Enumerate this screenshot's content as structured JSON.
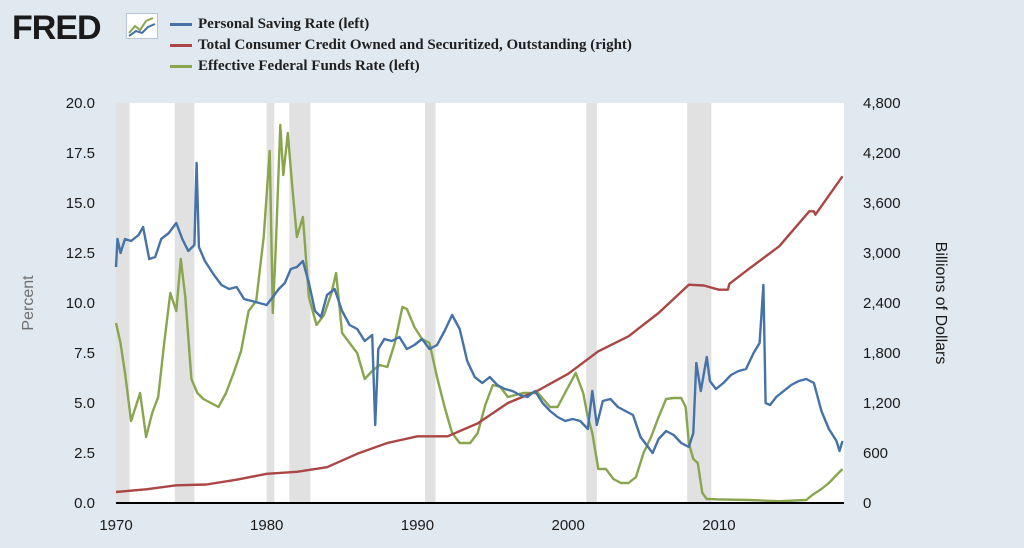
{
  "header": {
    "logo_text": "FRED",
    "logo_icon": "fred-line-graph-icon"
  },
  "legend": [
    {
      "label": "Personal Saving Rate (left)",
      "color": "#4572a7"
    },
    {
      "label": "Total Consumer Credit Owned and Securitized, Outstanding (right)",
      "color": "#aa4643"
    },
    {
      "label": "Effective Federal Funds Rate (left)",
      "color": "#89a54e"
    }
  ],
  "chart_data": {
    "type": "line",
    "ylabel": "Percent",
    "y2label": "Billions of Dollars",
    "xlim": [
      1970,
      2018.3
    ],
    "ylim": [
      0,
      20
    ],
    "y2lim": [
      0,
      4800
    ],
    "x_ticks": [
      "1970",
      "1980",
      "1990",
      "2000",
      "2010"
    ],
    "y_ticks": [
      "0.0",
      "2.5",
      "5.0",
      "7.5",
      "10.0",
      "12.5",
      "15.0",
      "17.5",
      "20.0"
    ],
    "y2_ticks": [
      "0",
      "600",
      "1,200",
      "1,800",
      "2,400",
      "3,000",
      "3,600",
      "4,200",
      "4,800"
    ],
    "grid": false,
    "legend_position": "top",
    "recessions": [
      [
        1969.9,
        1970.9
      ],
      [
        1973.9,
        1975.2
      ],
      [
        1980.0,
        1980.5
      ],
      [
        1981.5,
        1982.9
      ],
      [
        1990.5,
        1991.2
      ],
      [
        2001.2,
        2001.9
      ],
      [
        2007.9,
        2009.5
      ]
    ],
    "series": [
      {
        "name": "Personal Saving Rate (left)",
        "axis": "left",
        "color": "#4572a7",
        "x": [
          1970.0,
          1970.1,
          1970.3,
          1970.6,
          1971.0,
          1971.5,
          1971.8,
          1972.2,
          1972.6,
          1973.0,
          1973.5,
          1974.0,
          1974.4,
          1974.8,
          1975.2,
          1975.35,
          1975.5,
          1975.9,
          1976.5,
          1977.0,
          1977.5,
          1978.0,
          1978.5,
          1979.0,
          1979.5,
          1980.0,
          1980.4,
          1980.8,
          1981.2,
          1981.6,
          1982.0,
          1982.4,
          1982.8,
          1983.2,
          1983.6,
          1984.0,
          1984.5,
          1985.0,
          1985.5,
          1986.0,
          1986.5,
          1987.0,
          1987.2,
          1987.4,
          1987.8,
          1988.3,
          1988.8,
          1989.3,
          1989.8,
          1990.3,
          1990.8,
          1991.3,
          1991.8,
          1992.3,
          1992.8,
          1993.3,
          1993.8,
          1994.3,
          1994.8,
          1995.3,
          1995.8,
          1996.3,
          1996.8,
          1997.3,
          1997.8,
          1998.3,
          1998.8,
          1999.3,
          1999.8,
          2000.3,
          2000.8,
          2001.3,
          2001.6,
          2001.9,
          2002.3,
          2002.8,
          2003.3,
          2003.8,
          2004.3,
          2004.8,
          2005.3,
          2005.6,
          2006.0,
          2006.5,
          2007.0,
          2007.5,
          2008.0,
          2008.3,
          2008.5,
          2008.8,
          2009.2,
          2009.4,
          2009.8,
          2010.3,
          2010.8,
          2011.3,
          2011.8,
          2012.3,
          2012.7,
          2012.95,
          2013.1,
          2013.4,
          2013.8,
          2014.3,
          2014.8,
          2015.3,
          2015.8,
          2016.3,
          2016.8,
          2017.3,
          2017.8,
          2018.0,
          2018.2
        ],
        "y": [
          11.8,
          13.2,
          12.5,
          13.2,
          13.1,
          13.4,
          13.8,
          12.2,
          12.3,
          13.2,
          13.5,
          14.0,
          13.2,
          12.6,
          12.9,
          17.0,
          12.8,
          12.1,
          11.4,
          10.9,
          10.7,
          10.8,
          10.2,
          10.1,
          10.0,
          9.9,
          10.3,
          10.7,
          11.0,
          11.7,
          11.8,
          12.1,
          11.0,
          9.6,
          9.3,
          10.4,
          10.7,
          9.6,
          8.9,
          8.7,
          8.1,
          8.4,
          3.9,
          7.7,
          8.2,
          8.1,
          8.3,
          7.7,
          7.9,
          8.2,
          7.7,
          7.9,
          8.6,
          9.4,
          8.7,
          7.1,
          6.3,
          6.0,
          6.3,
          5.9,
          5.7,
          5.6,
          5.4,
          5.3,
          5.6,
          5.0,
          4.6,
          4.3,
          4.1,
          4.2,
          4.1,
          3.7,
          5.6,
          3.9,
          5.1,
          5.2,
          4.8,
          4.6,
          4.4,
          3.3,
          2.8,
          2.5,
          3.2,
          3.6,
          3.4,
          3.0,
          2.8,
          3.5,
          7.0,
          5.6,
          7.3,
          6.1,
          5.7,
          6.0,
          6.4,
          6.6,
          6.7,
          7.5,
          8.0,
          10.9,
          5.0,
          4.9,
          5.3,
          5.6,
          5.9,
          6.1,
          6.2,
          6.0,
          4.6,
          3.7,
          3.1,
          2.6,
          3.1
        ]
      },
      {
        "name": "Total Consumer Credit Owned and Securitized, Outstanding (right)",
        "axis": "right",
        "color": "#aa4643",
        "x": [
          1970,
          1972,
          1974,
          1976,
          1978,
          1980,
          1982,
          1984,
          1986,
          1988,
          1990,
          1992,
          1994,
          1996,
          1998,
          2000,
          2002,
          2004,
          2006,
          2008,
          2009,
          2010,
          2010.6,
          2010.7,
          2012,
          2014,
          2016,
          2016.3,
          2016.4,
          2018.2
        ],
        "y": [
          132,
          165,
          212,
          222,
          280,
          350,
          375,
          430,
          590,
          720,
          800,
          800,
          955,
          1200,
          1350,
          1550,
          1820,
          2000,
          2280,
          2620,
          2610,
          2560,
          2560,
          2630,
          2810,
          3080,
          3500,
          3500,
          3460,
          3920
        ]
      },
      {
        "name": "Effective Federal Funds Rate (left)",
        "axis": "left",
        "color": "#89a54e",
        "x": [
          1970.0,
          1970.3,
          1970.6,
          1971.0,
          1971.3,
          1971.6,
          1972.0,
          1972.4,
          1972.8,
          1973.2,
          1973.6,
          1974.0,
          1974.3,
          1974.6,
          1975.0,
          1975.4,
          1975.8,
          1976.3,
          1976.8,
          1977.3,
          1977.8,
          1978.3,
          1978.8,
          1979.3,
          1979.8,
          1980.2,
          1980.4,
          1980.6,
          1980.9,
          1981.1,
          1981.4,
          1981.7,
          1982.0,
          1982.4,
          1982.8,
          1983.3,
          1983.8,
          1984.3,
          1984.6,
          1985.0,
          1985.5,
          1986.0,
          1986.5,
          1987.0,
          1987.5,
          1988.0,
          1988.5,
          1989.0,
          1989.3,
          1989.8,
          1990.3,
          1990.8,
          1991.3,
          1991.8,
          1992.3,
          1992.8,
          1993.5,
          1994.0,
          1994.5,
          1995.0,
          1995.5,
          1996.0,
          1997.0,
          1998.0,
          1998.8,
          1999.3,
          2000.0,
          2000.5,
          2001.0,
          2001.3,
          2001.6,
          2002.0,
          2002.5,
          2003.0,
          2003.5,
          2004.0,
          2004.5,
          2005.0,
          2005.5,
          2006.0,
          2006.5,
          2007.0,
          2007.5,
          2007.8,
          2008.0,
          2008.3,
          2008.6,
          2008.9,
          2009.2,
          2010.0,
          2012.0,
          2014.0,
          2015.8,
          2016.2,
          2016.8,
          2017.3,
          2017.8,
          2018.2
        ],
        "y": [
          9.0,
          8.0,
          6.5,
          4.1,
          4.8,
          5.5,
          3.3,
          4.5,
          5.3,
          8.0,
          10.5,
          9.6,
          12.2,
          10.3,
          6.2,
          5.5,
          5.2,
          5.0,
          4.8,
          5.5,
          6.5,
          7.6,
          9.6,
          10.1,
          13.3,
          17.6,
          9.5,
          12.8,
          18.9,
          16.4,
          18.5,
          15.8,
          13.3,
          14.3,
          10.3,
          8.9,
          9.4,
          10.5,
          11.5,
          8.5,
          8.0,
          7.5,
          6.2,
          6.6,
          6.9,
          6.8,
          8.0,
          9.8,
          9.7,
          8.8,
          8.2,
          8.0,
          6.3,
          4.8,
          3.5,
          3.0,
          3.0,
          3.5,
          4.9,
          5.9,
          5.8,
          5.3,
          5.5,
          5.5,
          4.8,
          4.8,
          5.8,
          6.5,
          5.5,
          4.3,
          3.5,
          1.7,
          1.7,
          1.2,
          1.0,
          1.0,
          1.3,
          2.5,
          3.3,
          4.3,
          5.2,
          5.25,
          5.25,
          4.8,
          3.0,
          2.2,
          2.0,
          0.5,
          0.2,
          0.18,
          0.15,
          0.09,
          0.15,
          0.4,
          0.7,
          1.0,
          1.4,
          1.7
        ]
      }
    ]
  }
}
